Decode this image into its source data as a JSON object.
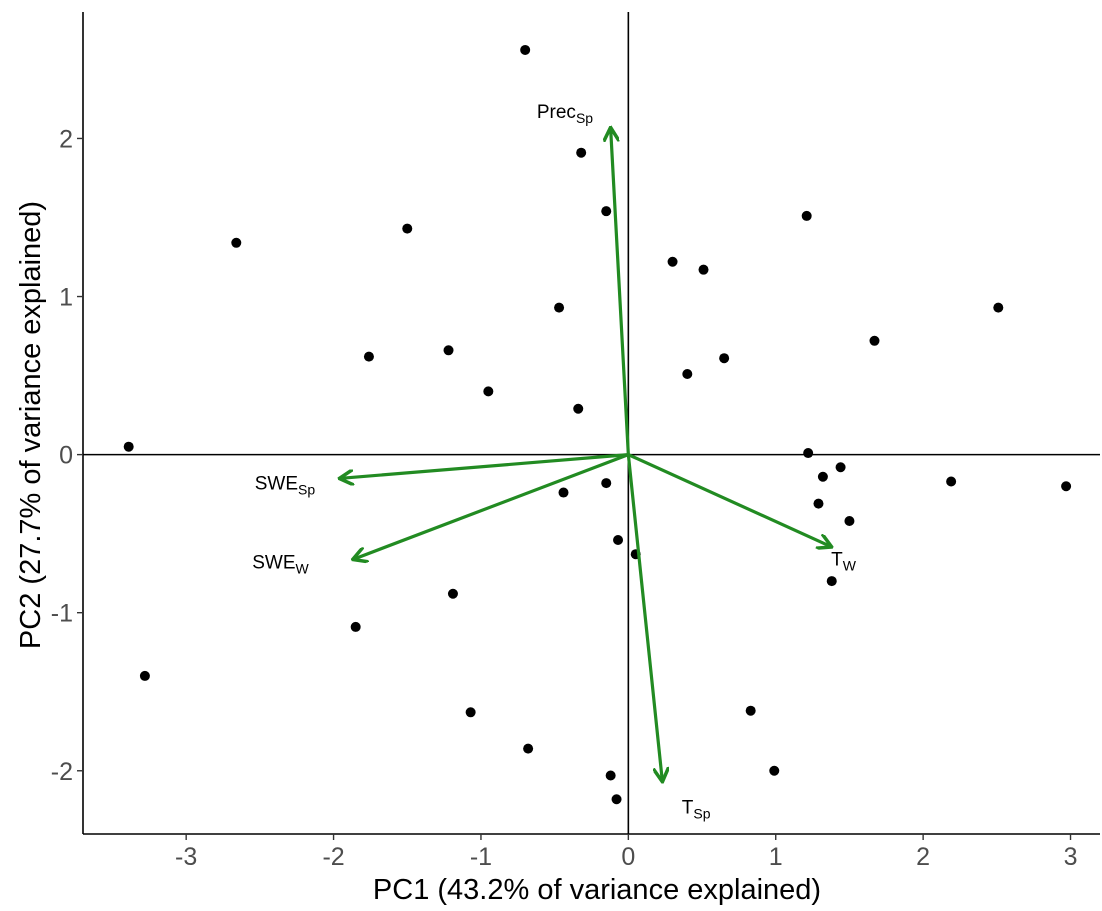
{
  "chart_data": {
    "type": "scatter",
    "xlabel": "PC1 (43.2% of variance explained)",
    "ylabel": "PC2 (27.7% of variance explained)",
    "xlim": [
      -3.7,
      3.2
    ],
    "ylim": [
      -2.4,
      2.8
    ],
    "grid": false,
    "x_ticks": [
      {
        "value": -3,
        "label": "-3"
      },
      {
        "value": -2,
        "label": "-2"
      },
      {
        "value": -1,
        "label": "-1"
      },
      {
        "value": 0,
        "label": "0"
      },
      {
        "value": 1,
        "label": "1"
      },
      {
        "value": 2,
        "label": "2"
      },
      {
        "value": 3,
        "label": "3"
      }
    ],
    "y_ticks": [
      {
        "value": -2,
        "label": "-2"
      },
      {
        "value": -1,
        "label": "-1"
      },
      {
        "value": 0,
        "label": "0"
      },
      {
        "value": 1,
        "label": "1"
      },
      {
        "value": 2,
        "label": "2"
      }
    ],
    "reference_lines": {
      "x": 0,
      "y": 0
    },
    "points": [
      {
        "x": -0.7,
        "y": 2.56
      },
      {
        "x": -0.32,
        "y": 1.91
      },
      {
        "x": -0.15,
        "y": 1.54
      },
      {
        "x": -2.66,
        "y": 1.34
      },
      {
        "x": -1.5,
        "y": 1.43
      },
      {
        "x": 1.21,
        "y": 1.51
      },
      {
        "x": 0.3,
        "y": 1.22
      },
      {
        "x": 0.51,
        "y": 1.17
      },
      {
        "x": -0.47,
        "y": 0.93
      },
      {
        "x": 2.51,
        "y": 0.93
      },
      {
        "x": 1.67,
        "y": 0.72
      },
      {
        "x": -1.76,
        "y": 0.62
      },
      {
        "x": -1.22,
        "y": 0.66
      },
      {
        "x": 0.65,
        "y": 0.61
      },
      {
        "x": 0.4,
        "y": 0.51
      },
      {
        "x": -0.95,
        "y": 0.4
      },
      {
        "x": -0.34,
        "y": 0.29
      },
      {
        "x": -3.39,
        "y": 0.05
      },
      {
        "x": 1.22,
        "y": 0.01
      },
      {
        "x": 1.44,
        "y": -0.08
      },
      {
        "x": 1.32,
        "y": -0.14
      },
      {
        "x": 2.19,
        "y": -0.17
      },
      {
        "x": 2.97,
        "y": -0.2
      },
      {
        "x": -0.15,
        "y": -0.18
      },
      {
        "x": -0.44,
        "y": -0.24
      },
      {
        "x": 1.29,
        "y": -0.31
      },
      {
        "x": 1.5,
        "y": -0.42
      },
      {
        "x": -0.07,
        "y": -0.54
      },
      {
        "x": 0.05,
        "y": -0.63
      },
      {
        "x": 1.38,
        "y": -0.8
      },
      {
        "x": -1.19,
        "y": -0.88
      },
      {
        "x": -1.85,
        "y": -1.09
      },
      {
        "x": -3.28,
        "y": -1.4
      },
      {
        "x": -1.07,
        "y": -1.63
      },
      {
        "x": 0.83,
        "y": -1.62
      },
      {
        "x": -0.68,
        "y": -1.86
      },
      {
        "x": -0.12,
        "y": -2.03
      },
      {
        "x": 0.99,
        "y": -2.0
      },
      {
        "x": -0.08,
        "y": -2.18
      }
    ],
    "loadings": [
      {
        "base": "Prec",
        "sub": "Sp",
        "x": -0.12,
        "y": 2.06,
        "lx": -0.43,
        "ly": 2.13
      },
      {
        "base": "SWE",
        "sub": "Sp",
        "x": -1.95,
        "y": -0.15,
        "lx": -2.33,
        "ly": -0.22
      },
      {
        "base": "SWE",
        "sub": "W",
        "x": -1.86,
        "y": -0.66,
        "lx": -2.36,
        "ly": -0.72
      },
      {
        "base": "T",
        "sub": "W",
        "x": 1.37,
        "y": -0.58,
        "lx": 1.46,
        "ly": -0.7
      },
      {
        "base": "T",
        "sub": "Sp",
        "x": 0.23,
        "y": -2.06,
        "lx": 0.46,
        "ly": -2.27
      }
    ],
    "colors": {
      "points": "#000000",
      "arrows": "#228b22",
      "axes": "#000000"
    }
  }
}
